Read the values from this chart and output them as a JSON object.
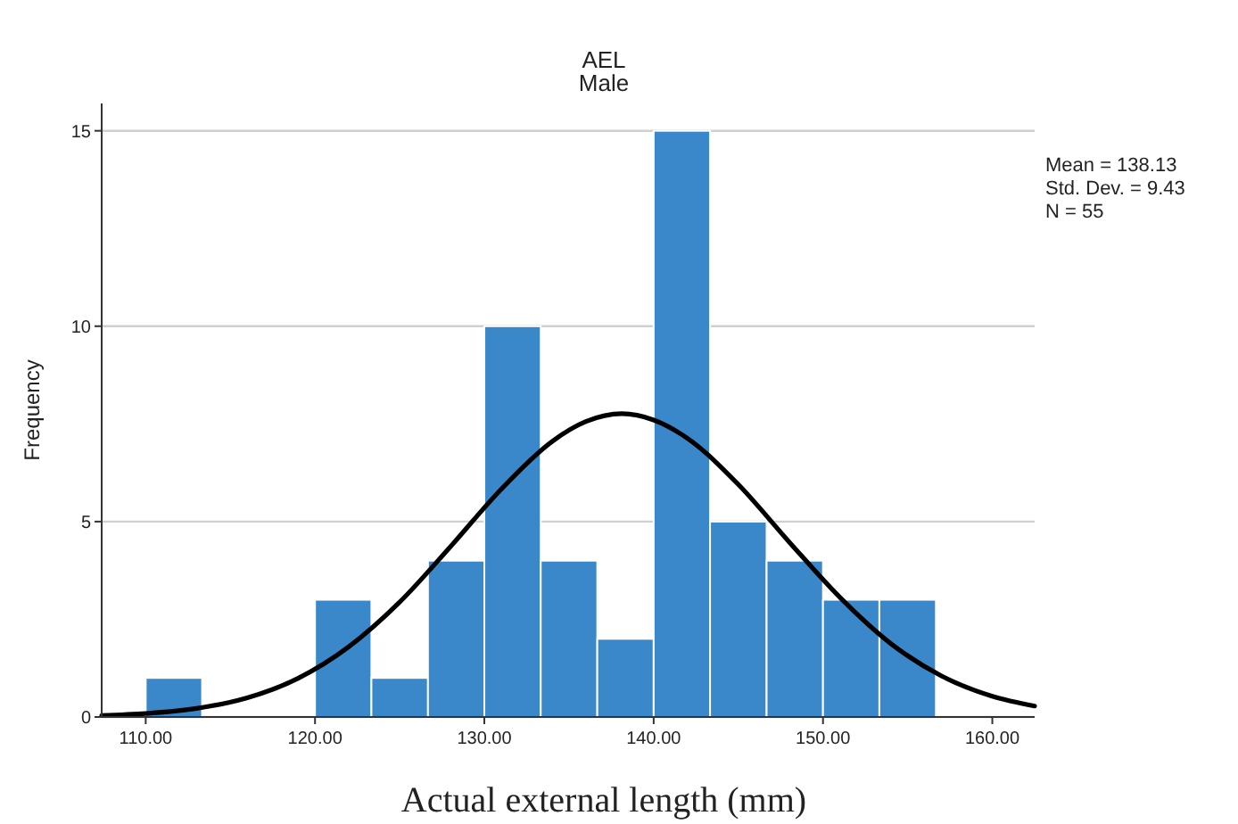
{
  "chart_data": {
    "type": "histogram",
    "title": "AEL",
    "subtitle": "Male",
    "xlabel": "Actual external length (mm)",
    "ylabel": "Frequency",
    "bins": [
      110,
      113.33,
      116.67,
      120,
      123.33,
      126.67,
      130,
      133.33,
      136.67,
      140,
      143.33,
      146.67,
      150,
      153.33,
      156.67
    ],
    "values": [
      1,
      0,
      0,
      3,
      1,
      4,
      10,
      4,
      2,
      15,
      5,
      4,
      3,
      3
    ],
    "color": "#3a88c9",
    "series": [
      {
        "type": "line",
        "color": "#000000",
        "x": [
          107.4,
          110,
          113,
          116,
          119,
          122,
          125,
          128,
          131,
          134,
          136,
          138.13,
          140,
          142,
          145,
          148,
          151,
          154,
          157,
          160,
          162.5
        ],
        "values": [
          0.04,
          0.09,
          0.22,
          0.49,
          0.99,
          1.8,
          2.94,
          4.36,
          5.83,
          7.05,
          7.56,
          7.76,
          7.6,
          7.13,
          5.95,
          4.48,
          3.06,
          1.88,
          1.05,
          0.53,
          0.28
        ]
      }
    ],
    "xlim": [
      107.4,
      162.5
    ],
    "ylim": [
      0,
      15.7
    ],
    "xticks": [
      {
        "value": 110,
        "label": "110.00"
      },
      {
        "value": 120,
        "label": "120.00"
      },
      {
        "value": 130,
        "label": "130.00"
      },
      {
        "value": 140,
        "label": "140.00"
      },
      {
        "value": 150,
        "label": "150.00"
      },
      {
        "value": 160,
        "label": "160.00"
      }
    ],
    "yticks": [
      0,
      5,
      10,
      15
    ],
    "grid": "y",
    "annotations": [
      "Mean = 138.13",
      "Std. Dev. = 9.43",
      "N = 55"
    ]
  }
}
